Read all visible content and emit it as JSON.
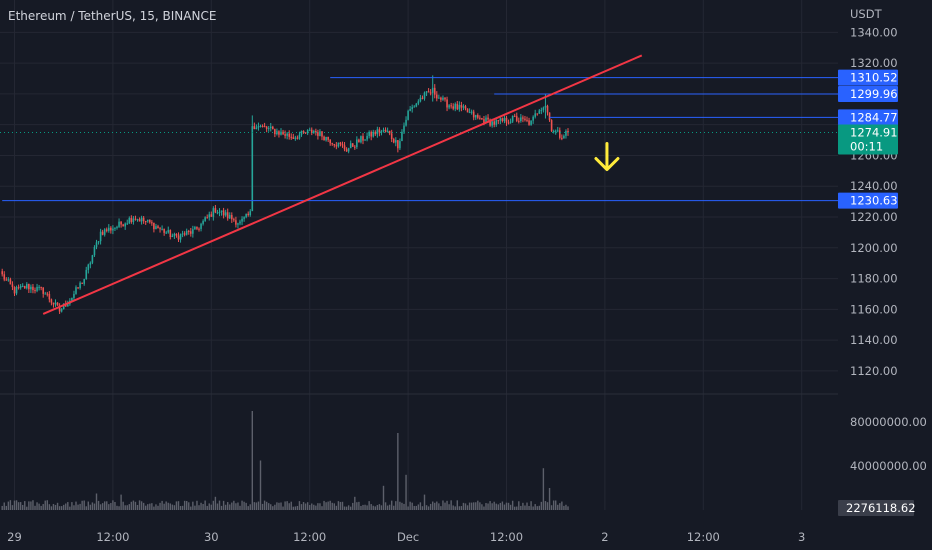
{
  "header": {
    "symbol_title": "Ethereum / TetherUS, 15, BINANCE"
  },
  "price_scale": {
    "currency": "USDT"
  },
  "colors": {
    "background": "#161a25",
    "up": "#26a69a",
    "down": "#ef5350",
    "hline": "#2962ff",
    "trendline": "#f23645",
    "arrow": "#ffeb3b",
    "volume": "#5d606b",
    "grid": "#242733",
    "last_price": "#089981",
    "level_tag": "#2962ff"
  },
  "chart_data": {
    "type": "candlestick",
    "title": "Ethereum / TetherUS, 15, BINANCE",
    "y_axis": {
      "unit": "USDT",
      "ylim": [
        1105,
        1348
      ],
      "ticks": [
        "1340.00",
        "1320.00",
        "1300.00",
        "1280.00",
        "1260.00",
        "1240.00",
        "1220.00",
        "1200.00",
        "1180.00",
        "1160.00",
        "1140.00",
        "1120.00"
      ]
    },
    "volume_axis": {
      "ylim": [
        0,
        100000000
      ],
      "ticks": [
        "80000000.00",
        "40000000.00"
      ]
    },
    "x_axis": {
      "ticks": [
        {
          "label": "29",
          "i": 6
        },
        {
          "label": "12:00",
          "i": 54
        },
        {
          "label": "30",
          "i": 102
        },
        {
          "label": "12:00",
          "i": 150
        },
        {
          "label": "Dec",
          "i": 198
        },
        {
          "label": "12:00",
          "i": 246
        },
        {
          "label": "2",
          "i": 294
        },
        {
          "label": "12:00",
          "i": 342
        },
        {
          "label": "3",
          "i": 390
        }
      ]
    },
    "candle_count": 277,
    "price_path": [
      [
        0,
        1182
      ],
      [
        6,
        1172
      ],
      [
        12,
        1175
      ],
      [
        20,
        1172
      ],
      [
        28,
        1159
      ],
      [
        34,
        1168
      ],
      [
        40,
        1180
      ],
      [
        48,
        1210
      ],
      [
        56,
        1214
      ],
      [
        64,
        1220
      ],
      [
        72,
        1216
      ],
      [
        84,
        1207
      ],
      [
        94,
        1211
      ],
      [
        104,
        1225
      ],
      [
        116,
        1216
      ],
      [
        121,
        1222
      ],
      [
        122,
        1280
      ],
      [
        130,
        1277
      ],
      [
        142,
        1272
      ],
      [
        152,
        1276
      ],
      [
        160,
        1270
      ],
      [
        168,
        1264
      ],
      [
        176,
        1271
      ],
      [
        184,
        1276
      ],
      [
        188,
        1275
      ],
      [
        193,
        1267
      ],
      [
        198,
        1288
      ],
      [
        204,
        1297
      ],
      [
        210,
        1302
      ],
      [
        216,
        1294
      ],
      [
        226,
        1289
      ],
      [
        232,
        1284
      ],
      [
        240,
        1281
      ],
      [
        250,
        1284
      ],
      [
        258,
        1281
      ],
      [
        262,
        1291
      ],
      [
        265,
        1293
      ],
      [
        268,
        1278
      ],
      [
        272,
        1273
      ],
      [
        276,
        1275
      ]
    ],
    "spikes": [
      {
        "i": 122,
        "high": 1286,
        "low": 1262
      },
      {
        "i": 210,
        "high": 1312,
        "low": 1295
      },
      {
        "i": 265,
        "high": 1300,
        "low": 1284
      },
      {
        "i": 193,
        "high": 1270,
        "low": 1262
      },
      {
        "i": 28,
        "high": 1164,
        "low": 1157
      }
    ],
    "volume_spikes": [
      {
        "i": 122,
        "value": 90000000
      },
      {
        "i": 126,
        "value": 45000000
      },
      {
        "i": 193,
        "value": 70000000
      },
      {
        "i": 197,
        "value": 32000000
      },
      {
        "i": 264,
        "value": 38000000
      },
      {
        "i": 267,
        "value": 20000000
      },
      {
        "i": 46,
        "value": 15000000
      },
      {
        "i": 58,
        "value": 14000000
      },
      {
        "i": 104,
        "value": 12000000
      },
      {
        "i": 172,
        "value": 12000000
      },
      {
        "i": 186,
        "value": 22000000
      },
      {
        "i": 206,
        "value": 14000000
      }
    ],
    "horizontal_levels": [
      {
        "price": 1310.52,
        "label": "1310.52",
        "start_i": 160
      },
      {
        "price": 1299.96,
        "label": "1299.96",
        "start_i": 240
      },
      {
        "price": 1284.77,
        "label": "1284.77",
        "start_i": 267
      },
      {
        "price": 1230.63,
        "label": "1230.63",
        "start_i": 0
      }
    ],
    "trendline": {
      "from": {
        "i": 20,
        "price": 1157
      },
      "to": {
        "i": 312,
        "price": 1325
      }
    },
    "last_price": {
      "value": 1274.91,
      "label": "1274.91",
      "countdown": "00:11"
    },
    "last_volume": {
      "value": 2276118.62,
      "label": "2276118.62"
    },
    "arrow_annotation": {
      "direction": "down",
      "i": 295,
      "price": 1258
    }
  }
}
